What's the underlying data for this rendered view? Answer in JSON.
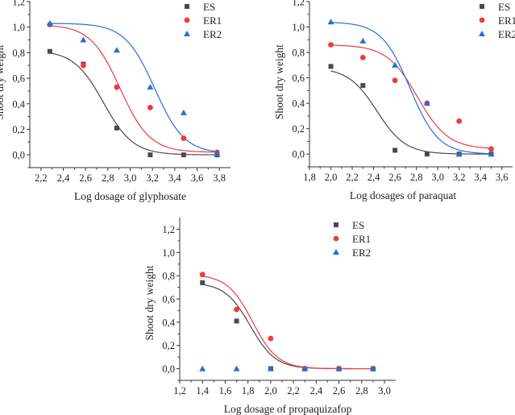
{
  "chart_data": [
    {
      "type": "scatter",
      "title": "",
      "xlabel": "Log dosage of glyphosate",
      "ylabel": "Shoot dry weight",
      "xlim": [
        2.1,
        3.9
      ],
      "ylim": [
        -0.1,
        1.2
      ],
      "xticks": [
        "2,2",
        "2,4",
        "2,6",
        "2,8",
        "3,0",
        "3,2",
        "3,4",
        "3,6",
        "3,8"
      ],
      "xtick_values": [
        2.2,
        2.4,
        2.6,
        2.8,
        3.0,
        3.2,
        3.4,
        3.6,
        3.8
      ],
      "yticks": [
        "0,0",
        "0,2",
        "0,4",
        "0,6",
        "0,8",
        "1,0",
        "1,2"
      ],
      "ytick_values": [
        0.0,
        0.2,
        0.4,
        0.6,
        0.8,
        1.0,
        1.2
      ],
      "legend": "top-right",
      "grid": false,
      "x": [
        2.28,
        2.58,
        2.88,
        3.18,
        3.48,
        3.78
      ],
      "series": [
        {
          "name": "ES",
          "marker": "square",
          "color": "#4a4a4a",
          "values": [
            0.81,
            0.71,
            0.21,
            0.0,
            0.0,
            0.0
          ],
          "fit": {
            "top": 0.82,
            "bottom": 0.0,
            "ed50": 2.76,
            "slope": 7.5
          }
        },
        {
          "name": "ER1",
          "marker": "circle",
          "color": "#f23a3a",
          "values": [
            1.02,
            0.7,
            0.53,
            0.37,
            0.13,
            0.02
          ],
          "fit": {
            "top": 1.02,
            "bottom": 0.02,
            "ed50": 2.91,
            "slope": 7.5
          }
        },
        {
          "name": "ER2",
          "marker": "triangle",
          "color": "#1f6fe0",
          "values": [
            1.03,
            0.9,
            0.82,
            0.53,
            0.33,
            0.01
          ],
          "fit": {
            "top": 1.03,
            "bottom": 0.01,
            "ed50": 3.22,
            "slope": 7.5
          }
        }
      ]
    },
    {
      "type": "scatter",
      "title": "",
      "xlabel": "Log dosages of paraquat",
      "ylabel": "Shoot dry weight",
      "xlim": [
        1.8,
        3.7
      ],
      "ylim": [
        -0.1,
        1.2
      ],
      "xticks": [
        "1,8",
        "2,0",
        "2,2",
        "2,4",
        "2,6",
        "2,8",
        "3,0",
        "3,2",
        "3,4",
        "3,6"
      ],
      "xtick_values": [
        1.8,
        2.0,
        2.2,
        2.4,
        2.6,
        2.8,
        3.0,
        3.2,
        3.4,
        3.6
      ],
      "yticks": [
        "0,0",
        "0,2",
        "0,4",
        "0,6",
        "0,8",
        "1,0",
        "1,2"
      ],
      "ytick_values": [
        0.0,
        0.2,
        0.4,
        0.6,
        0.8,
        1.0,
        1.2
      ],
      "legend": "top-right",
      "grid": false,
      "x": [
        2.0,
        2.3,
        2.6,
        2.9,
        3.2,
        3.5
      ],
      "series": [
        {
          "name": "ES",
          "marker": "square",
          "color": "#4a4a4a",
          "values": [
            0.69,
            0.54,
            0.03,
            0.0,
            0.0,
            0.0
          ],
          "fit": {
            "top": 0.68,
            "bottom": 0.0,
            "ed50": 2.43,
            "slope": 7.5
          }
        },
        {
          "name": "ER1",
          "marker": "circle",
          "color": "#f23a3a",
          "values": [
            0.86,
            0.76,
            0.58,
            0.4,
            0.26,
            0.04
          ],
          "fit": {
            "top": 0.86,
            "bottom": 0.04,
            "ed50": 2.81,
            "slope": 7.0
          }
        },
        {
          "name": "ER2",
          "marker": "triangle",
          "color": "#1f6fe0",
          "values": [
            1.04,
            0.89,
            0.7,
            0.4,
            0.0,
            0.0
          ],
          "fit": {
            "top": 1.04,
            "bottom": 0.0,
            "ed50": 2.74,
            "slope": 7.5
          }
        }
      ]
    },
    {
      "type": "scatter",
      "title": "",
      "xlabel": "Log dosage of propaquizafop",
      "ylabel": "Shoot dry weight",
      "xlim": [
        1.2,
        3.1
      ],
      "ylim": [
        -0.1,
        1.3
      ],
      "xticks": [
        "1,2",
        "1,4",
        "1,6",
        "1,8",
        "2,0",
        "2,2",
        "2,4",
        "2,6",
        "2,8",
        "3,0"
      ],
      "xtick_values": [
        1.2,
        1.4,
        1.6,
        1.8,
        2.0,
        2.2,
        2.4,
        2.6,
        2.8,
        3.0
      ],
      "yticks": [
        "0,0",
        "0,2",
        "0,4",
        "0,6",
        "0,8",
        "1,0",
        "1,2"
      ],
      "ytick_values": [
        0.0,
        0.2,
        0.4,
        0.6,
        0.8,
        1.0,
        1.2
      ],
      "legend": "top-right",
      "grid": false,
      "x": [
        1.4,
        1.7,
        2.0,
        2.3,
        2.6,
        2.9
      ],
      "series": [
        {
          "name": "ES",
          "marker": "square",
          "color": "#4a4a4a",
          "values": [
            0.74,
            0.41,
            0.0,
            0.0,
            0.0,
            0.0
          ],
          "fit": {
            "top": 0.74,
            "bottom": 0.0,
            "ed50": 1.82,
            "slope": 9.0
          }
        },
        {
          "name": "ER1",
          "marker": "circle",
          "color": "#f23a3a",
          "values": [
            0.81,
            0.51,
            0.26,
            0.0,
            0.0,
            0.0
          ],
          "fit": {
            "top": 0.81,
            "bottom": 0.0,
            "ed50": 1.84,
            "slope": 9.0
          }
        },
        {
          "name": "ER2",
          "marker": "triangle",
          "color": "#1f6fe0",
          "values": [
            0.0,
            0.0,
            0.0,
            0.0,
            0.0,
            0.0
          ],
          "fit": null
        }
      ]
    }
  ]
}
